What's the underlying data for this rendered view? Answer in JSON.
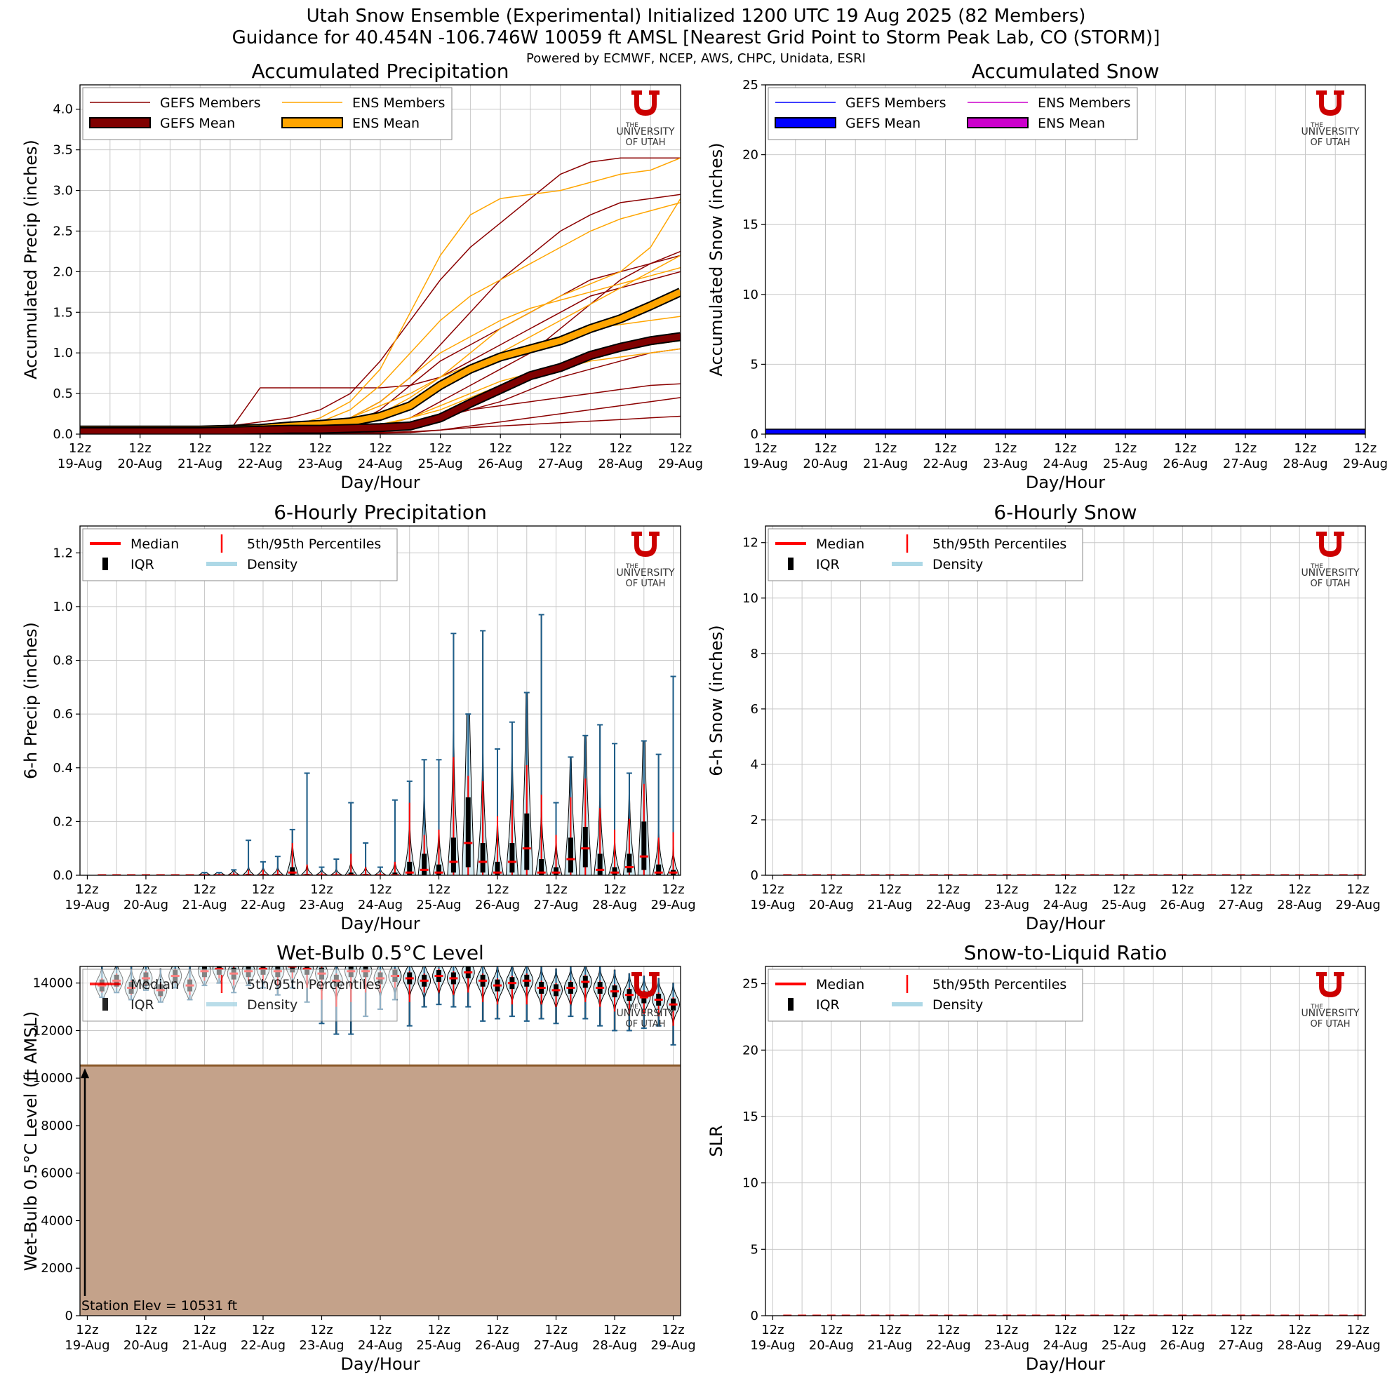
{
  "header": {
    "title_line1": "Utah Snow Ensemble (Experimental) Initialized 1200 UTC 19 Aug 2025 (82 Members)",
    "title_line2": "Guidance for 40.454N -106.746W 10059 ft AMSL [Nearest Grid Point to Storm Peak Lab, CO (STORM)]",
    "credits": "Powered by ECMWF, NCEP, AWS, CHPC, Unidata, ESRI"
  },
  "logo": {
    "line1": "THE",
    "line2": "UNIVERSITY",
    "line3": "OF UTAH"
  },
  "colors": {
    "gefs_member": "#8b0000",
    "gefs_mean": "#800000",
    "ens_member": "#ffa500",
    "ens_mean": "#ffa500",
    "gefs_snow": "#0000ff",
    "ens_snow": "#cc00cc",
    "median": "#ff0000",
    "density": "#add8e6",
    "violin_edge": "#1f5f8b",
    "terrain": "#c4a28a",
    "terrain_edge": "#8b5a2b",
    "utah_red": "#cc0000"
  },
  "x_ticks": {
    "hours": [
      "12z",
      "12z",
      "12z",
      "12z",
      "12z",
      "12z",
      "12z",
      "12z",
      "12z",
      "12z",
      "12z"
    ],
    "days": [
      "19-Aug",
      "20-Aug",
      "21-Aug",
      "22-Aug",
      "23-Aug",
      "24-Aug",
      "25-Aug",
      "26-Aug",
      "27-Aug",
      "28-Aug",
      "29-Aug"
    ]
  },
  "chart_data": [
    {
      "id": "acc_precip",
      "type": "line",
      "title": "Accumulated Precipitation",
      "xlabel": "Day/Hour",
      "ylabel": "Accumulated Precip (inches)",
      "x_range_hours": [
        0,
        240
      ],
      "ylim": [
        0,
        4.3
      ],
      "yticks": [
        "0.0",
        "0.5",
        "1.0",
        "1.5",
        "2.0",
        "2.5",
        "3.0",
        "3.5",
        "4.0"
      ],
      "ytick_values": [
        0,
        0.5,
        1,
        1.5,
        2,
        2.5,
        3,
        3.5,
        4
      ],
      "legend": [
        "GEFS Members",
        "ENS Members",
        "GEFS Mean",
        "ENS Mean"
      ],
      "x_hours": [
        0,
        12,
        24,
        36,
        48,
        60,
        72,
        84,
        96,
        108,
        120,
        132,
        144,
        156,
        168,
        180,
        192,
        204,
        216,
        228,
        240
      ],
      "series": [
        {
          "name": "ENS Mean",
          "values": [
            0.05,
            0.05,
            0.05,
            0.05,
            0.05,
            0.06,
            0.07,
            0.1,
            0.12,
            0.15,
            0.22,
            0.35,
            0.6,
            0.8,
            0.95,
            1.05,
            1.15,
            1.3,
            1.42,
            1.58,
            1.75
          ]
        },
        {
          "name": "GEFS Mean",
          "values": [
            0.03,
            0.03,
            0.03,
            0.03,
            0.03,
            0.04,
            0.05,
            0.06,
            0.06,
            0.07,
            0.08,
            0.1,
            0.2,
            0.38,
            0.55,
            0.72,
            0.82,
            0.97,
            1.07,
            1.15,
            1.2
          ]
        },
        {
          "name": "GEFS Member 1",
          "values": [
            0,
            0,
            0,
            0.02,
            0.04,
            0.1,
            0.15,
            0.2,
            0.3,
            0.5,
            0.9,
            1.4,
            1.9,
            2.3,
            2.6,
            2.9,
            3.2,
            3.35,
            3.4,
            3.4,
            3.4
          ]
        },
        {
          "name": "GEFS Member 2",
          "values": [
            0,
            0,
            0,
            0,
            0.02,
            0.05,
            0.57,
            0.57,
            0.57,
            0.57,
            0.57,
            0.6,
            0.7,
            0.9,
            1.1,
            1.3,
            1.5,
            1.7,
            1.8,
            1.9,
            2.0
          ]
        },
        {
          "name": "GEFS Member 3",
          "values": [
            0,
            0,
            0,
            0,
            0,
            0.01,
            0.02,
            0.05,
            0.1,
            0.2,
            0.4,
            0.7,
            1.1,
            1.5,
            1.9,
            2.2,
            2.5,
            2.7,
            2.85,
            2.9,
            2.95
          ]
        },
        {
          "name": "GEFS Member 4",
          "values": [
            0,
            0,
            0,
            0,
            0,
            0,
            0,
            0.01,
            0.02,
            0.05,
            0.1,
            0.2,
            0.4,
            0.6,
            0.8,
            1.0,
            1.3,
            1.6,
            1.9,
            2.1,
            2.2
          ]
        },
        {
          "name": "GEFS Member 5",
          "values": [
            0,
            0,
            0,
            0,
            0,
            0,
            0,
            0,
            0.01,
            0.02,
            0.05,
            0.1,
            0.2,
            0.3,
            0.4,
            0.55,
            0.7,
            0.8,
            0.9,
            1.0,
            1.05
          ]
        },
        {
          "name": "GEFS Member 6",
          "values": [
            0,
            0,
            0,
            0,
            0,
            0,
            0.02,
            0.04,
            0.06,
            0.08,
            0.1,
            0.15,
            0.25,
            0.3,
            0.35,
            0.4,
            0.45,
            0.5,
            0.55,
            0.6,
            0.62
          ]
        },
        {
          "name": "GEFS Member 7",
          "values": [
            0,
            0,
            0,
            0,
            0,
            0,
            0,
            0,
            0,
            0,
            0.01,
            0.02,
            0.05,
            0.1,
            0.15,
            0.2,
            0.25,
            0.3,
            0.35,
            0.4,
            0.45
          ]
        },
        {
          "name": "GEFS Member 8",
          "values": [
            0,
            0,
            0,
            0,
            0,
            0,
            0,
            0,
            0,
            0.01,
            0.02,
            0.03,
            0.05,
            0.08,
            0.1,
            0.12,
            0.14,
            0.16,
            0.18,
            0.2,
            0.22
          ]
        },
        {
          "name": "GEFS Member 9",
          "values": [
            0,
            0,
            0,
            0,
            0,
            0,
            0.01,
            0.02,
            0.04,
            0.1,
            0.3,
            0.6,
            0.9,
            1.1,
            1.3,
            1.5,
            1.7,
            1.9,
            2.0,
            2.1,
            2.25
          ]
        },
        {
          "name": "ENS Member 1",
          "values": [
            0,
            0,
            0,
            0,
            0,
            0,
            0.05,
            0.1,
            0.2,
            0.4,
            0.8,
            1.5,
            2.2,
            2.7,
            2.9,
            2.95,
            3.0,
            3.1,
            3.2,
            3.25,
            3.4
          ]
        },
        {
          "name": "ENS Member 2",
          "values": [
            0,
            0,
            0,
            0,
            0,
            0.02,
            0.05,
            0.1,
            0.15,
            0.3,
            0.6,
            1.0,
            1.4,
            1.7,
            1.9,
            2.1,
            2.3,
            2.5,
            2.65,
            2.75,
            2.85
          ]
        },
        {
          "name": "ENS Member 3",
          "values": [
            0,
            0,
            0,
            0,
            0,
            0.01,
            0.02,
            0.05,
            0.1,
            0.2,
            0.4,
            0.7,
            1.0,
            1.2,
            1.4,
            1.55,
            1.65,
            1.75,
            1.85,
            1.95,
            2.05
          ]
        },
        {
          "name": "ENS Member 4",
          "values": [
            0,
            0,
            0,
            0,
            0.01,
            0.02,
            0.04,
            0.08,
            0.12,
            0.2,
            0.35,
            0.5,
            0.7,
            0.85,
            1.0,
            1.1,
            1.2,
            1.3,
            1.35,
            1.4,
            1.45
          ]
        },
        {
          "name": "ENS Member 5",
          "values": [
            0,
            0,
            0,
            0,
            0,
            0,
            0.02,
            0.05,
            0.1,
            0.15,
            0.25,
            0.4,
            0.6,
            0.8,
            1.0,
            1.2,
            1.4,
            1.6,
            1.8,
            2.0,
            2.2
          ]
        },
        {
          "name": "ENS Member 6",
          "values": [
            0,
            0,
            0,
            0,
            0,
            0,
            0,
            0.01,
            0.02,
            0.05,
            0.1,
            0.2,
            0.35,
            0.5,
            0.65,
            0.75,
            0.85,
            0.95,
            1.05,
            1.1,
            1.15
          ]
        },
        {
          "name": "ENS Member 7",
          "values": [
            0,
            0,
            0,
            0,
            0,
            0.01,
            0.03,
            0.06,
            0.1,
            0.15,
            0.25,
            0.45,
            0.7,
            1.0,
            1.3,
            1.5,
            1.7,
            1.85,
            2.0,
            2.3,
            2.9
          ]
        },
        {
          "name": "ENS Member 8",
          "values": [
            0,
            0,
            0,
            0,
            0,
            0,
            0.01,
            0.03,
            0.05,
            0.08,
            0.12,
            0.2,
            0.3,
            0.45,
            0.6,
            0.7,
            0.8,
            0.9,
            0.95,
            1.0,
            1.05
          ]
        }
      ]
    },
    {
      "id": "acc_snow",
      "type": "line",
      "title": "Accumulated Snow",
      "xlabel": "Day/Hour",
      "ylabel": "Accumulated Snow (inches)",
      "x_range_hours": [
        0,
        240
      ],
      "ylim": [
        0,
        25
      ],
      "yticks": [
        "0",
        "5",
        "10",
        "15",
        "20",
        "25"
      ],
      "ytick_values": [
        0,
        5,
        10,
        15,
        20,
        25
      ],
      "legend": [
        "GEFS Members",
        "ENS Members",
        "GEFS Mean",
        "ENS Mean"
      ],
      "series": [
        {
          "name": "GEFS Mean",
          "values": [
            0,
            0
          ]
        },
        {
          "name": "ENS Mean",
          "values": [
            0,
            0
          ]
        }
      ]
    },
    {
      "id": "hourly6_precip",
      "type": "violin",
      "title": "6-Hourly Precipitation",
      "xlabel": "Day/Hour",
      "ylabel": "6-h Precip (inches)",
      "x_range_hours": [
        -3,
        243
      ],
      "ylim": [
        0,
        1.3
      ],
      "yticks": [
        "0.0",
        "0.2",
        "0.4",
        "0.6",
        "0.8",
        "1.0",
        "1.2"
      ],
      "ytick_values": [
        0,
        0.2,
        0.4,
        0.6,
        0.8,
        1.0,
        1.2
      ],
      "legend": [
        "Median",
        "5th/95th Percentiles",
        "IQR",
        "Density"
      ],
      "x_hours": [
        6,
        12,
        18,
        24,
        30,
        36,
        42,
        48,
        54,
        60,
        66,
        72,
        78,
        84,
        90,
        96,
        102,
        108,
        114,
        120,
        126,
        132,
        138,
        144,
        150,
        156,
        162,
        168,
        174,
        180,
        186,
        192,
        198,
        204,
        210,
        216,
        222,
        228,
        234,
        240
      ],
      "max": [
        0,
        0,
        0,
        0,
        0,
        0,
        0,
        0.01,
        0.01,
        0.02,
        0.13,
        0.05,
        0.07,
        0.17,
        0.38,
        0.03,
        0.06,
        0.27,
        0.12,
        0.03,
        0.28,
        0.35,
        0.43,
        0.43,
        0.9,
        0.6,
        0.91,
        0.47,
        0.57,
        0.68,
        0.97,
        0.27,
        0.44,
        0.52,
        0.56,
        0.49,
        0.38,
        0.5,
        0.45,
        0.74
      ],
      "p95": [
        0,
        0,
        0,
        0,
        0,
        0,
        0,
        0,
        0.005,
        0.01,
        0.02,
        0.02,
        0.02,
        0.12,
        0.04,
        0.01,
        0.01,
        0.08,
        0.03,
        0.01,
        0.05,
        0.27,
        0.15,
        0.17,
        0.44,
        0.37,
        0.35,
        0.22,
        0.28,
        0.41,
        0.3,
        0.15,
        0.29,
        0.36,
        0.25,
        0.17,
        0.21,
        0.34,
        0.14,
        0.16
      ],
      "q3": [
        0,
        0,
        0,
        0,
        0,
        0,
        0,
        0,
        0,
        0,
        0.005,
        0.005,
        0.005,
        0.03,
        0.005,
        0,
        0,
        0.01,
        0.005,
        0,
        0.01,
        0.05,
        0.08,
        0.04,
        0.14,
        0.29,
        0.12,
        0.05,
        0.12,
        0.23,
        0.06,
        0.03,
        0.14,
        0.18,
        0.08,
        0.03,
        0.08,
        0.2,
        0.04,
        0.02
      ],
      "median": [
        0,
        0,
        0,
        0,
        0,
        0,
        0,
        0,
        0,
        0,
        0,
        0,
        0,
        0.01,
        0,
        0,
        0,
        0,
        0,
        0,
        0,
        0.01,
        0.02,
        0.01,
        0.05,
        0.12,
        0.05,
        0.01,
        0.05,
        0.1,
        0.01,
        0.01,
        0.06,
        0.1,
        0.02,
        0.01,
        0.03,
        0.07,
        0.01,
        0.01
      ],
      "q1": [
        0,
        0,
        0,
        0,
        0,
        0,
        0,
        0,
        0,
        0,
        0,
        0,
        0,
        0,
        0,
        0,
        0,
        0,
        0,
        0,
        0,
        0,
        0,
        0,
        0.01,
        0.03,
        0.01,
        0,
        0.01,
        0.02,
        0,
        0,
        0.01,
        0.03,
        0,
        0,
        0.01,
        0.02,
        0,
        0
      ]
    },
    {
      "id": "hourly6_snow",
      "type": "violin",
      "title": "6-Hourly Snow",
      "xlabel": "Day/Hour",
      "ylabel": "6-h Snow (inches)",
      "x_range_hours": [
        -3,
        243
      ],
      "ylim": [
        0,
        12.6
      ],
      "yticks": [
        "0",
        "2",
        "4",
        "6",
        "8",
        "10",
        "12"
      ],
      "ytick_values": [
        0,
        2,
        4,
        6,
        8,
        10,
        12
      ],
      "legend": [
        "Median",
        "5th/95th Percentiles",
        "IQR",
        "Density"
      ],
      "median_all": 0
    },
    {
      "id": "wetbulb",
      "type": "violin",
      "title": "Wet-Bulb 0.5°C Level",
      "xlabel": "Day/Hour",
      "ylabel": "Wet-Bulb 0.5°C Level (ft AMSL)",
      "x_range_hours": [
        -3,
        243
      ],
      "ylim": [
        0,
        14700
      ],
      "yticks": [
        "0",
        "2000",
        "4000",
        "6000",
        "8000",
        "10000",
        "12000",
        "14000"
      ],
      "ytick_values": [
        0,
        2000,
        4000,
        6000,
        8000,
        10000,
        12000,
        14000
      ],
      "legend": [
        "Median",
        "5th/95th Percentiles",
        "IQR",
        "Density"
      ],
      "station_elev": 10531,
      "station_label": "Station Elev = 10531 ft",
      "x_hours": [
        6,
        12,
        18,
        24,
        30,
        36,
        42,
        48,
        54,
        60,
        66,
        72,
        78,
        84,
        90,
        96,
        102,
        108,
        114,
        120,
        126,
        132,
        138,
        144,
        150,
        156,
        162,
        168,
        174,
        180,
        186,
        192,
        198,
        204,
        210,
        216,
        222,
        228,
        234,
        240
      ],
      "median": [
        13900,
        14100,
        13800,
        14200,
        13700,
        14300,
        13900,
        14500,
        14600,
        14400,
        14500,
        14600,
        14500,
        14700,
        14600,
        14400,
        14100,
        14500,
        14500,
        14200,
        14300,
        14200,
        14100,
        14300,
        14200,
        14450,
        14100,
        13900,
        14000,
        14100,
        13800,
        13700,
        13800,
        14050,
        13800,
        13650,
        13500,
        13400,
        13300,
        13100
      ],
      "min": [
        13400,
        13600,
        13300,
        13700,
        13200,
        13800,
        13300,
        13900,
        14000,
        13600,
        13900,
        13800,
        13500,
        13800,
        13200,
        12300,
        11850,
        11850,
        12600,
        12900,
        13300,
        12200,
        13000,
        13100,
        13000,
        13000,
        12400,
        12500,
        12600,
        12400,
        12500,
        12300,
        12600,
        12500,
        12200,
        12000,
        12000,
        12100,
        12200,
        11400
      ],
      "p05": [
        13600,
        13800,
        13500,
        13900,
        13400,
        14000,
        13500,
        14100,
        14200,
        13900,
        14100,
        14100,
        13900,
        14200,
        13800,
        13300,
        13000,
        13200,
        13600,
        13600,
        13800,
        13200,
        13600,
        13600,
        13500,
        13600,
        13200,
        13100,
        13100,
        13100,
        13100,
        13000,
        13100,
        13200,
        13000,
        12800,
        12700,
        12700,
        12600,
        12200
      ]
    },
    {
      "id": "slr",
      "type": "violin",
      "title": "Snow-to-Liquid Ratio",
      "xlabel": "Day/Hour",
      "ylabel": "SLR",
      "x_range_hours": [
        -3,
        243
      ],
      "ylim": [
        0,
        26.3
      ],
      "yticks": [
        "0",
        "5",
        "10",
        "15",
        "20",
        "25"
      ],
      "ytick_values": [
        0,
        5,
        10,
        15,
        20,
        25
      ],
      "legend": [
        "Median",
        "5th/95th Percentiles",
        "IQR",
        "Density"
      ],
      "median_all": 0
    }
  ]
}
